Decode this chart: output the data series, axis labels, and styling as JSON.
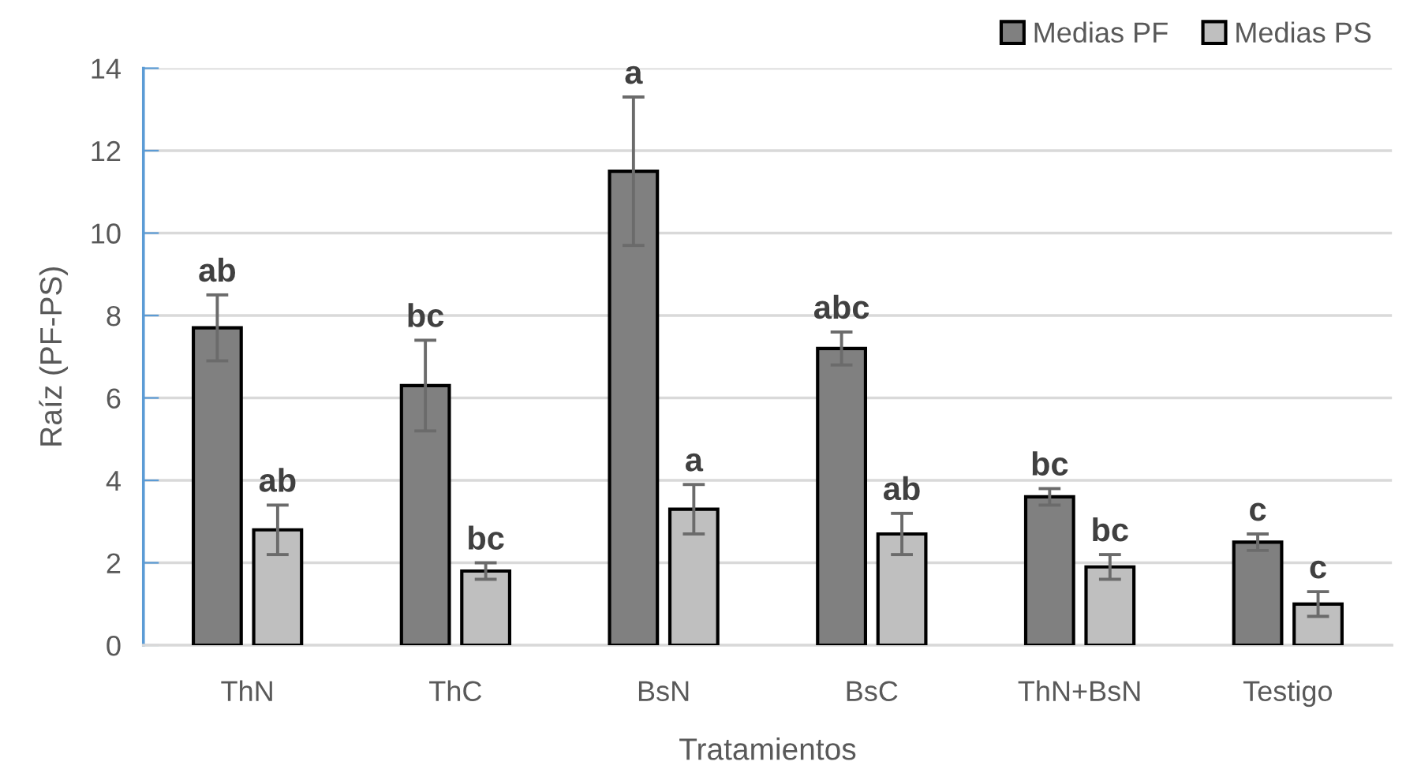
{
  "chart_data": {
    "type": "bar",
    "xlabel": "Tratamientos",
    "ylabel": "Raíz (PF-PS)",
    "categories": [
      "ThN",
      "ThC",
      "BsN",
      "BsC",
      "ThN+BsN",
      "Testigo"
    ],
    "series": [
      {
        "name": "Medias PF",
        "color": "#808080",
        "values": [
          7.7,
          6.3,
          11.5,
          7.2,
          3.6,
          2.5
        ],
        "errors": [
          0.8,
          1.1,
          1.8,
          0.4,
          0.2,
          0.2
        ],
        "value_labels": [
          "ab",
          "bc",
          "a",
          "abc",
          "bc",
          "c"
        ]
      },
      {
        "name": "Medias PS",
        "color": "#bfbfbf",
        "values": [
          2.8,
          1.8,
          3.3,
          2.7,
          1.9,
          1.0
        ],
        "errors": [
          0.6,
          0.2,
          0.6,
          0.5,
          0.3,
          0.3
        ],
        "value_labels": [
          "ab",
          "bc",
          "a",
          "ab",
          "bc",
          "c"
        ]
      }
    ],
    "ylim": [
      0,
      14
    ],
    "yticks": [
      0,
      2,
      4,
      6,
      8,
      10,
      12,
      14
    ],
    "grid": "y",
    "legend": "top right"
  }
}
